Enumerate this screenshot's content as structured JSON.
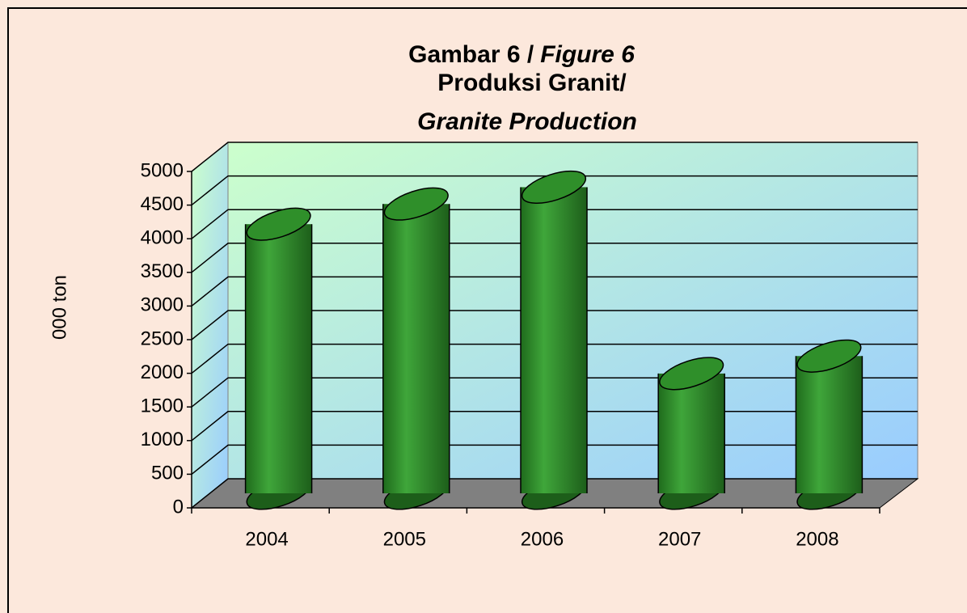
{
  "chart_data": {
    "type": "bar3d",
    "title": [
      "Gambar 6 /",
      "Figure 6"
    ],
    "subtitle": [
      "Produksi Granit/",
      "Granite Production"
    ],
    "y_label": "000 ton",
    "categories": [
      "2004",
      "2005",
      "2006",
      "2007",
      "2008"
    ],
    "values": [
      4000,
      4300,
      4550,
      1780,
      2040
    ],
    "color": "#2f8f2a",
    "ylim": [
      0,
      5000
    ],
    "yticks": [
      0,
      500,
      1000,
      1500,
      2000,
      2500,
      3000,
      3500,
      4000,
      4500,
      5000
    ],
    "grid": true
  }
}
